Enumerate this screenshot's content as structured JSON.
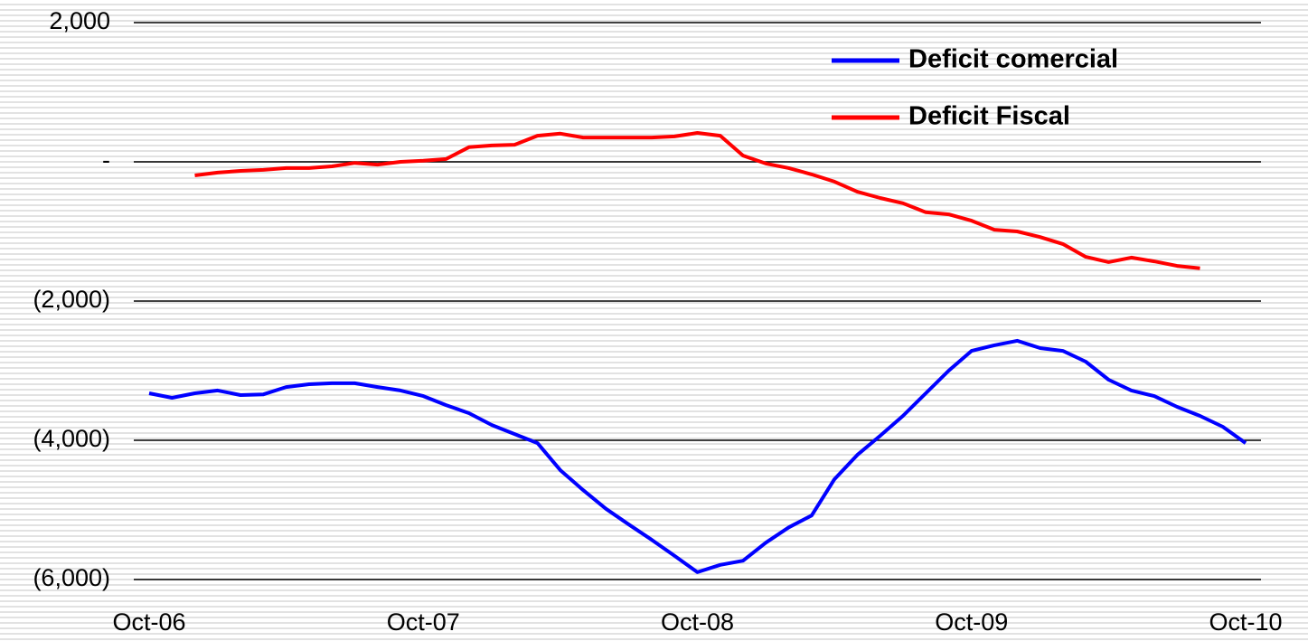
{
  "chart_data": {
    "type": "line",
    "categories": [
      "Oct-06",
      null,
      null,
      null,
      null,
      null,
      null,
      null,
      null,
      null,
      null,
      null,
      "Oct-07",
      null,
      null,
      null,
      null,
      null,
      null,
      null,
      null,
      null,
      null,
      null,
      "Oct-08",
      null,
      null,
      null,
      null,
      null,
      null,
      null,
      null,
      null,
      null,
      null,
      "Oct-09",
      null,
      null,
      null,
      null,
      null,
      null,
      null,
      null,
      null,
      null,
      null,
      "Oct-10"
    ],
    "series": [
      {
        "name": "Deficit comercial",
        "color": "#0000ff",
        "values": [
          -3325,
          -3390,
          -3325,
          -3285,
          -3350,
          -3340,
          -3235,
          -3195,
          -3180,
          -3180,
          -3235,
          -3285,
          -3365,
          -3495,
          -3610,
          -3780,
          -3910,
          -4040,
          -4430,
          -4715,
          -4985,
          -5210,
          -5430,
          -5660,
          -5895,
          -5790,
          -5730,
          -5470,
          -5250,
          -5080,
          -4560,
          -4210,
          -3935,
          -3650,
          -3325,
          -3000,
          -2715,
          -2635,
          -2570,
          -2675,
          -2715,
          -2870,
          -3130,
          -3285,
          -3365,
          -3520,
          -3650,
          -3805,
          -4040
        ]
      },
      {
        "name": "Deficit Fiscal",
        "color": "#ff0000",
        "values": [
          null,
          null,
          -195,
          -155,
          -130,
          -115,
          -90,
          -90,
          -65,
          -15,
          -40,
          0,
          15,
          40,
          210,
          235,
          245,
          375,
          405,
          350,
          350,
          350,
          350,
          365,
          415,
          375,
          90,
          -25,
          -90,
          -180,
          -285,
          -430,
          -520,
          -595,
          -725,
          -755,
          -845,
          -975,
          -1000,
          -1080,
          -1180,
          -1365,
          -1440,
          -1375,
          -1430,
          -1495,
          -1530,
          null,
          null
        ]
      }
    ],
    "ylim": [
      -6000,
      2000
    ],
    "yticks": [
      {
        "value": -6000,
        "label": "(6,000)"
      },
      {
        "value": -4000,
        "label": "(4,000)"
      },
      {
        "value": -2000,
        "label": "(2,000)"
      },
      {
        "value": 0,
        "label": "-"
      },
      {
        "value": 2000,
        "label": "2,000"
      }
    ],
    "grid": true,
    "legend": "top-right"
  }
}
